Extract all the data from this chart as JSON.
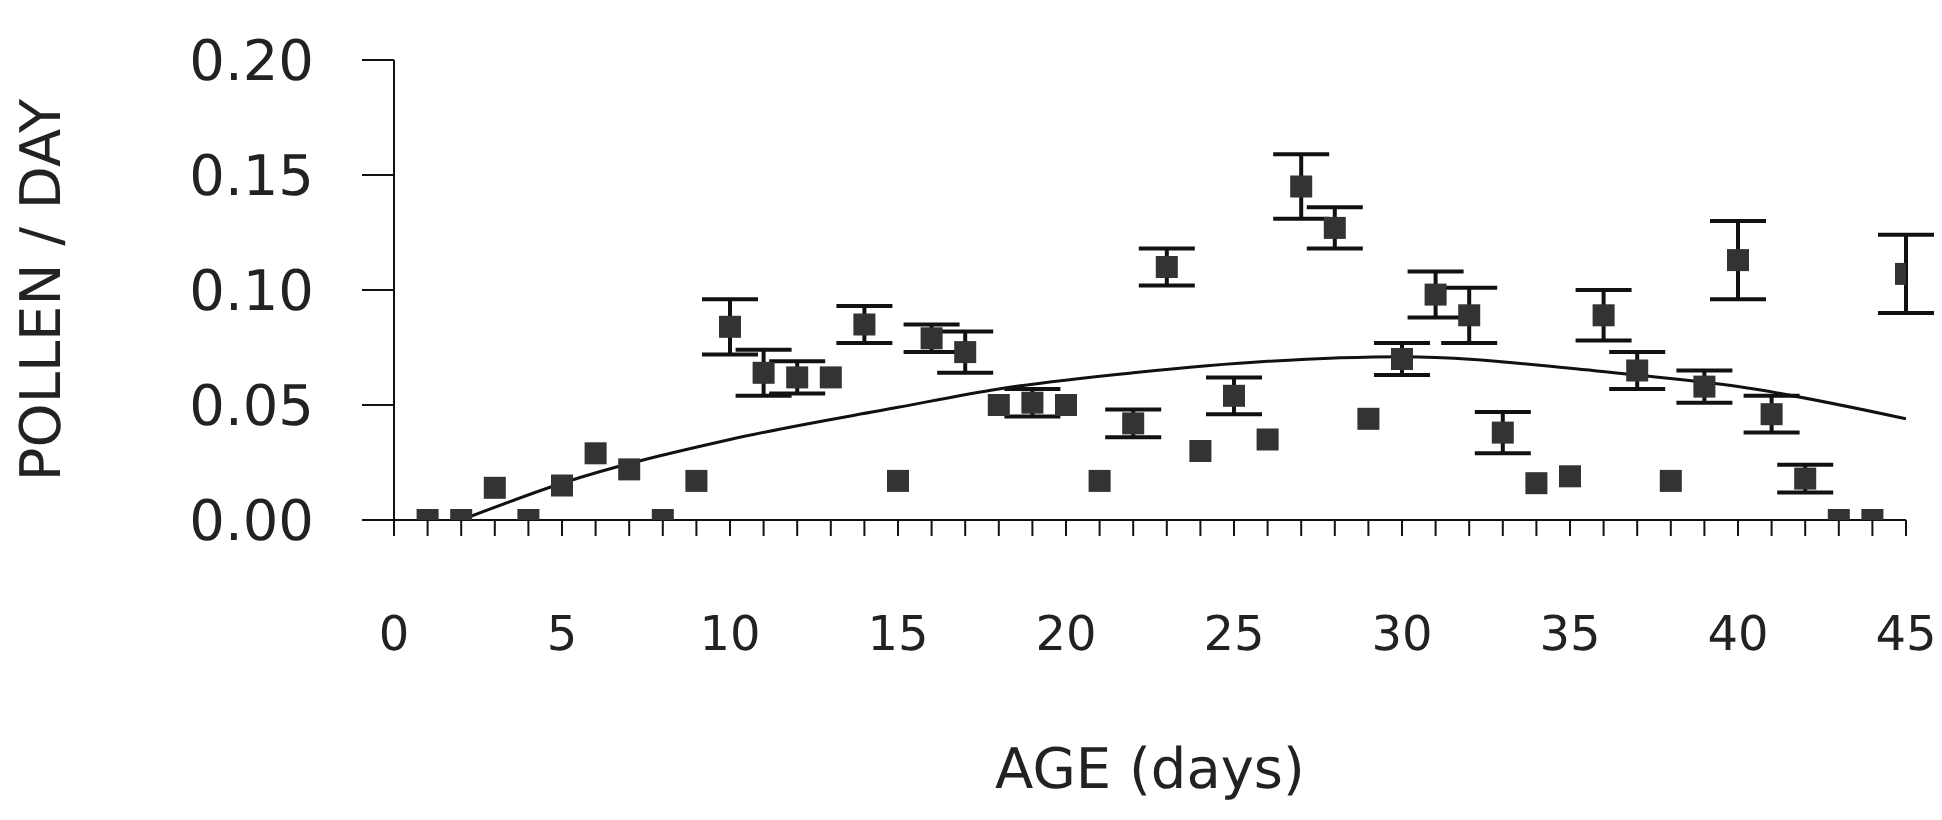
{
  "chart_data": {
    "type": "scatter",
    "xlabel": "AGE (days)",
    "ylabel": "POLLEN / DAY",
    "xlim": [
      0,
      45
    ],
    "ylim": [
      0,
      0.2
    ],
    "xticks": [
      0,
      {
        "value": 1,
        "label": null
      },
      {
        "value": 2,
        "label": null
      },
      {
        "value": 3,
        "label": null
      },
      {
        "value": 4,
        "label": null
      },
      5,
      {
        "value": 6,
        "label": null
      },
      {
        "value": 7,
        "label": null
      },
      {
        "value": 8,
        "label": null
      },
      {
        "value": 9,
        "label": null
      },
      10,
      {
        "value": 11,
        "label": null
      },
      {
        "value": 12,
        "label": null
      },
      {
        "value": 13,
        "label": null
      },
      {
        "value": 14,
        "label": null
      },
      15,
      {
        "value": 16,
        "label": null
      },
      {
        "value": 17,
        "label": null
      },
      {
        "value": 18,
        "label": null
      },
      {
        "value": 19,
        "label": null
      },
      20,
      {
        "value": 21,
        "label": null
      },
      {
        "value": 22,
        "label": null
      },
      {
        "value": 23,
        "label": null
      },
      {
        "value": 24,
        "label": null
      },
      25,
      {
        "value": 26,
        "label": null
      },
      {
        "value": 27,
        "label": null
      },
      {
        "value": 28,
        "label": null
      },
      {
        "value": 29,
        "label": null
      },
      30,
      {
        "value": 31,
        "label": null
      },
      {
        "value": 32,
        "label": null
      },
      {
        "value": 33,
        "label": null
      },
      {
        "value": 34,
        "label": null
      },
      35,
      {
        "value": 36,
        "label": null
      },
      {
        "value": 37,
        "label": null
      },
      {
        "value": 38,
        "label": null
      },
      {
        "value": 39,
        "label": null
      },
      40,
      {
        "value": 41,
        "label": null
      },
      {
        "value": 42,
        "label": null
      },
      {
        "value": 43,
        "label": null
      },
      {
        "value": 44,
        "label": null
      },
      45
    ],
    "yticks": [
      {
        "value": 0,
        "label": "0.00"
      },
      {
        "value": 0.05,
        "label": "0.05"
      },
      {
        "value": 0.1,
        "label": "0.10"
      },
      {
        "value": 0.15,
        "label": "0.15"
      },
      {
        "value": 0.2,
        "label": "0.20"
      }
    ],
    "marker": "square",
    "series": [
      {
        "color": "#333333",
        "x": [
          1,
          2,
          3,
          4,
          5,
          6,
          7,
          8,
          9,
          10,
          11,
          12,
          13,
          14,
          15,
          16,
          17,
          18,
          19,
          20,
          21,
          22,
          23,
          24,
          25,
          26,
          27,
          28,
          29,
          30,
          31,
          32,
          33,
          34,
          35,
          36,
          37,
          38,
          39,
          40,
          41,
          42,
          43,
          44,
          45
        ],
        "values": [
          0,
          0,
          0.014,
          0,
          0.015,
          0.029,
          0.022,
          0,
          0.017,
          0.084,
          0.064,
          0.062,
          0.062,
          0.085,
          0.017,
          0.079,
          0.073,
          0.05,
          0.051,
          0.05,
          0.017,
          0.042,
          0.11,
          0.03,
          0.054,
          0.035,
          0.145,
          0.127,
          0.044,
          0.07,
          0.098,
          0.089,
          0.038,
          0.016,
          0.019,
          0.089,
          0.065,
          0.017,
          0.058,
          0.113,
          0.046,
          0.018,
          0,
          0,
          0.107
        ],
        "errors": [
          null,
          null,
          null,
          null,
          null,
          null,
          null,
          null,
          null,
          0.012,
          0.01,
          0.007,
          null,
          0.008,
          null,
          0.006,
          0.009,
          null,
          0.006,
          null,
          null,
          0.006,
          0.008,
          null,
          0.008,
          null,
          0.014,
          0.009,
          null,
          0.007,
          0.01,
          0.012,
          0.009,
          null,
          null,
          0.011,
          0.008,
          null,
          0.007,
          0.017,
          0.008,
          0.006,
          null,
          null,
          0.017
        ]
      },
      {
        "type": "line",
        "color": "#111111",
        "marker": "none",
        "x": [
          2,
          5,
          10,
          15,
          18,
          22,
          26,
          30,
          35,
          37,
          40,
          45
        ],
        "values": [
          0,
          0.016,
          0.035,
          0.049,
          0.057,
          0.064,
          0.069,
          0.071,
          0.066,
          0.063,
          0.058,
          0.044
        ]
      }
    ]
  }
}
